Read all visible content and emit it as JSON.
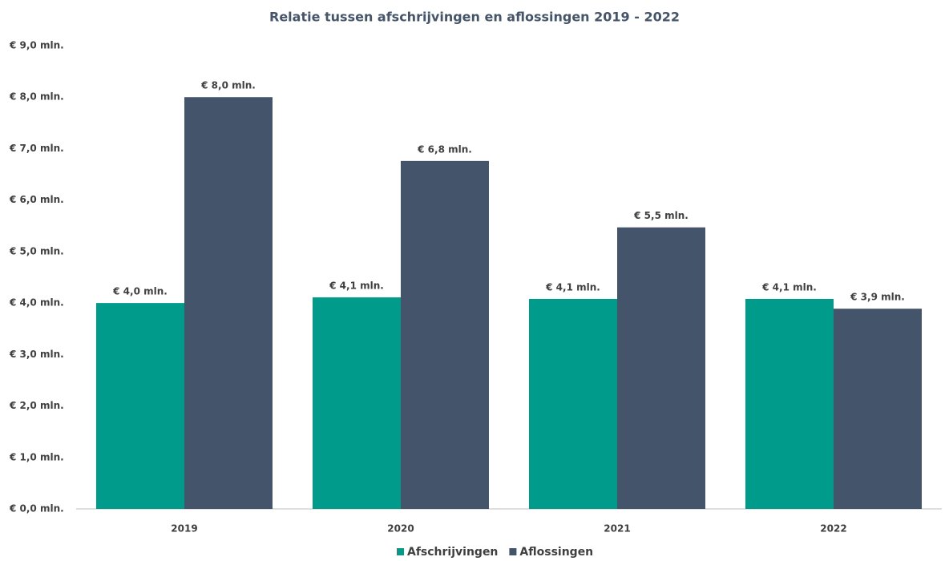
{
  "chart_data": {
    "type": "bar",
    "title": "Relatie tussen afschrijvingen en aflossingen 2019 - 2022",
    "categories": [
      "2019",
      "2020",
      "2021",
      "2022"
    ],
    "series": [
      {
        "name": "Afschrijvingen",
        "color": "#009b8a",
        "values": [
          4.0,
          4.11,
          4.08,
          4.08
        ],
        "value_labels": [
          "€ 4,0 mln.",
          "€ 4,1 mln.",
          "€ 4,1 mln.",
          "€ 4,1 mln."
        ]
      },
      {
        "name": "Aflossingen",
        "color": "#44546a",
        "values": [
          8.0,
          6.76,
          5.47,
          3.89
        ],
        "value_labels": [
          "€ 8,0 mln.",
          "€ 6,8 mln.",
          "€ 5,5 mln.",
          "€ 3,9 mln."
        ]
      }
    ],
    "ylim": [
      0,
      9
    ],
    "yticks": [
      {
        "value": 0,
        "label": "€ 0,0 mln."
      },
      {
        "value": 1,
        "label": "€ 1,0 mln."
      },
      {
        "value": 2,
        "label": "€ 2,0 mln."
      },
      {
        "value": 3,
        "label": "€ 3,0 mln."
      },
      {
        "value": 4,
        "label": "€ 4,0 mln."
      },
      {
        "value": 5,
        "label": "€ 5,0 mln."
      },
      {
        "value": 6,
        "label": "€ 6,0 mln."
      },
      {
        "value": 7,
        "label": "€ 7,0 mln."
      },
      {
        "value": 8,
        "label": "€ 8,0 mln."
      },
      {
        "value": 9,
        "label": "€ 9,0 mln."
      }
    ],
    "grid": false,
    "legend": "bottom"
  }
}
